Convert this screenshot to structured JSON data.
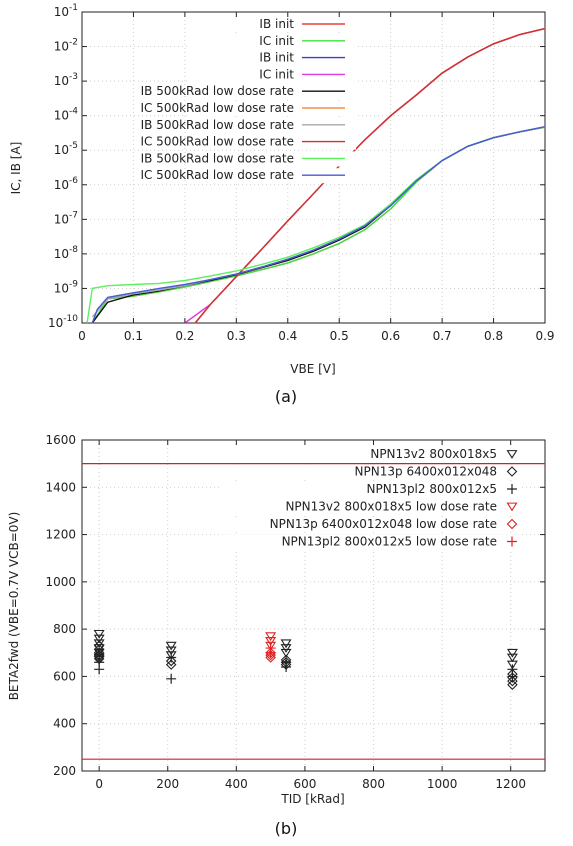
{
  "chart_data": [
    {
      "type": "line",
      "caption": "(a)",
      "xlabel": "VBE [V]",
      "ylabel": "IC, IB [A]",
      "yscale": "log",
      "xlim": [
        0,
        0.9
      ],
      "ylim": [
        1e-10,
        0.1
      ],
      "xticks": [
        "0",
        "0.1",
        "0.2",
        "0.3",
        "0.4",
        "0.5",
        "0.6",
        "0.7",
        "0.8",
        "0.9"
      ],
      "yticks": [
        {
          "base": "10",
          "exp": "-10"
        },
        {
          "base": "10",
          "exp": "-9"
        },
        {
          "base": "10",
          "exp": "-8"
        },
        {
          "base": "10",
          "exp": "-7"
        },
        {
          "base": "10",
          "exp": "-6"
        },
        {
          "base": "10",
          "exp": "-5"
        },
        {
          "base": "10",
          "exp": "-4"
        },
        {
          "base": "10",
          "exp": "-3"
        },
        {
          "base": "10",
          "exp": "-2"
        },
        {
          "base": "10",
          "exp": "-1"
        }
      ],
      "legend_position": "top-right",
      "series": [
        {
          "name": "IB init",
          "color": "#e8413c",
          "x": [
            0.02,
            0.05,
            0.1,
            0.15,
            0.2,
            0.25,
            0.3,
            0.35,
            0.4,
            0.45,
            0.5,
            0.55,
            0.6,
            0.65,
            0.7,
            0.75,
            0.8,
            0.85,
            0.9
          ],
          "y": [
            1e-10,
            5e-10,
            6e-10,
            8e-10,
            1.1e-09,
            1.6e-09,
            2.3e-09,
            3.5e-09,
            5.5e-09,
            1e-08,
            2e-08,
            5e-08,
            2e-07,
            1.2e-06,
            5e-06,
            1.3e-05,
            2.3e-05,
            3.4e-05,
            4.7e-05
          ]
        },
        {
          "name": "IC init",
          "color": "#3fe23f",
          "x": [
            0.02,
            0.05,
            0.1,
            0.15,
            0.2,
            0.25,
            0.3,
            0.35,
            0.4,
            0.45,
            0.5,
            0.55,
            0.6,
            0.65,
            0.7,
            0.75,
            0.8,
            0.85,
            0.9
          ],
          "y": [
            1e-10,
            5e-10,
            6e-10,
            8e-10,
            1.1e-09,
            1.6e-09,
            2.3e-09,
            3.5e-09,
            5.5e-09,
            1e-08,
            2e-08,
            5e-08,
            2e-07,
            1.2e-06,
            5e-06,
            1.3e-05,
            2.3e-05,
            3.4e-05,
            4.7e-05
          ]
        },
        {
          "name": "IB init",
          "color": "#3a3ae0",
          "x": [
            0.22,
            0.25,
            0.3,
            0.35,
            0.4,
            0.45,
            0.5,
            0.55,
            0.6,
            0.65,
            0.7,
            0.75,
            0.8,
            0.85,
            0.9
          ],
          "y": [
            1e-10,
            3.5e-10,
            2.2e-09,
            1.4e-08,
            9e-08,
            5.5e-07,
            3.5e-06,
            2e-05,
            0.0001,
            0.0004,
            0.0017,
            0.005,
            0.012,
            0.022,
            0.033
          ]
        },
        {
          "name": "IC init",
          "color": "#e03ae0",
          "x": [
            0.2,
            0.25,
            0.3,
            0.35,
            0.4,
            0.45,
            0.5,
            0.55,
            0.6,
            0.65,
            0.7,
            0.75,
            0.8,
            0.85,
            0.9
          ],
          "y": [
            1e-10,
            3.5e-10,
            2.2e-09,
            1.4e-08,
            9e-08,
            5.5e-07,
            3.5e-06,
            2e-05,
            0.0001,
            0.0004,
            0.0017,
            0.005,
            0.012,
            0.022,
            0.033
          ]
        },
        {
          "name": "IB 500kRad low dose rate",
          "color": "#111111",
          "x": [
            0.02,
            0.05,
            0.1,
            0.15,
            0.2,
            0.25,
            0.3,
            0.35,
            0.4,
            0.45,
            0.5,
            0.55,
            0.6,
            0.65,
            0.7,
            0.75,
            0.8,
            0.85,
            0.9
          ],
          "y": [
            1e-10,
            4e-10,
            6.5e-10,
            8.5e-10,
            1.2e-09,
            1.7e-09,
            2.5e-09,
            4e-09,
            6.5e-09,
            1.2e-08,
            2.5e-08,
            6e-08,
            2.5e-07,
            1.3e-06,
            5e-06,
            1.3e-05,
            2.3e-05,
            3.4e-05,
            4.7e-05
          ]
        },
        {
          "name": "IC 500kRad low dose rate",
          "color": "#f0904a",
          "x": [
            0.22,
            0.25,
            0.3,
            0.35,
            0.4,
            0.45,
            0.5,
            0.55,
            0.6,
            0.65,
            0.7,
            0.75,
            0.8,
            0.85,
            0.9
          ],
          "y": [
            1e-10,
            3.5e-10,
            2.2e-09,
            1.4e-08,
            9e-08,
            5.5e-07,
            3.5e-06,
            2e-05,
            0.0001,
            0.0004,
            0.0017,
            0.005,
            0.012,
            0.022,
            0.033
          ]
        },
        {
          "name": "IB 500kRad low dose rate",
          "color": "#a8a8a8",
          "x": [
            0.02,
            0.05,
            0.1,
            0.15,
            0.2,
            0.25,
            0.3,
            0.35,
            0.4,
            0.45,
            0.5,
            0.55,
            0.6,
            0.65,
            0.7,
            0.75,
            0.8,
            0.85,
            0.9
          ],
          "y": [
            1.5e-10,
            5e-10,
            7e-10,
            9e-10,
            1.2e-09,
            1.8e-09,
            2.6e-09,
            4.2e-09,
            7e-09,
            1.3e-08,
            2.7e-08,
            6.5e-08,
            2.6e-07,
            1.3e-06,
            5e-06,
            1.3e-05,
            2.3e-05,
            3.4e-05,
            4.7e-05
          ]
        },
        {
          "name": "IC 500kRad low dose rate",
          "color": "#d23030",
          "x": [
            0.22,
            0.25,
            0.3,
            0.35,
            0.4,
            0.45,
            0.5,
            0.55,
            0.6,
            0.65,
            0.7,
            0.75,
            0.8,
            0.85,
            0.9
          ],
          "y": [
            1e-10,
            3.5e-10,
            2.2e-09,
            1.4e-08,
            9e-08,
            5.5e-07,
            3.5e-06,
            2e-05,
            0.0001,
            0.0004,
            0.0017,
            0.005,
            0.012,
            0.022,
            0.033
          ]
        },
        {
          "name": "IB 500kRad low dose rate",
          "color": "#5cf05c",
          "x": [
            0.01,
            0.02,
            0.05,
            0.1,
            0.15,
            0.2,
            0.25,
            0.3,
            0.35,
            0.4,
            0.45,
            0.5,
            0.55,
            0.6,
            0.65,
            0.7,
            0.75,
            0.8,
            0.85,
            0.9
          ],
          "y": [
            1e-10,
            1e-09,
            1.2e-09,
            1.3e-09,
            1.4e-09,
            1.7e-09,
            2.3e-09,
            3.2e-09,
            5e-09,
            8e-09,
            1.5e-08,
            3e-08,
            7e-08,
            2.8e-07,
            1.4e-06,
            5e-06,
            1.3e-05,
            2.3e-05,
            3.4e-05,
            4.8e-05
          ]
        },
        {
          "name": "IC 500kRad low dose rate",
          "color": "#4a5ad8",
          "x": [
            0.02,
            0.03,
            0.05,
            0.1,
            0.15,
            0.2,
            0.25,
            0.3,
            0.35,
            0.4,
            0.45,
            0.5,
            0.55,
            0.6,
            0.65,
            0.7,
            0.75,
            0.8,
            0.85,
            0.9
          ],
          "y": [
            1e-10,
            2.5e-10,
            5.5e-10,
            7.5e-10,
            1e-09,
            1.3e-09,
            1.8e-09,
            2.6e-09,
            4.2e-09,
            7e-09,
            1.3e-08,
            2.7e-08,
            6.5e-08,
            2.5e-07,
            1.3e-06,
            5e-06,
            1.3e-05,
            2.3e-05,
            3.4e-05,
            4.8e-05
          ]
        }
      ]
    },
    {
      "type": "scatter",
      "caption": "(b)",
      "xlabel": "TID [kRad]",
      "ylabel": "BETA2fwd (VBE=0.7V VCB=0V)",
      "xlim": [
        -50,
        1300
      ],
      "ylim": [
        200,
        1600
      ],
      "xticks": [
        "0",
        "200",
        "400",
        "600",
        "800",
        "1000",
        "1200"
      ],
      "yticks": [
        "200",
        "400",
        "600",
        "800",
        "1000",
        "1200",
        "1400",
        "1600"
      ],
      "legend_position": "top-right",
      "hlines": [
        {
          "y": 1500,
          "color": "#d62020"
        },
        {
          "y": 250,
          "color": "#d62020"
        }
      ],
      "series": [
        {
          "name": "NPN13v2 800x018x5",
          "marker": "triangle-down",
          "color": "#222222",
          "points": [
            [
              0,
              780
            ],
            [
              0,
              760
            ],
            [
              0,
              740
            ],
            [
              0,
              720
            ],
            [
              0,
              700
            ],
            [
              0,
              680
            ],
            [
              0,
              670
            ],
            [
              210,
              730
            ],
            [
              210,
              710
            ],
            [
              210,
              690
            ],
            [
              545,
              740
            ],
            [
              545,
              720
            ],
            [
              545,
              700
            ],
            [
              1205,
              700
            ],
            [
              1205,
              680
            ],
            [
              1205,
              650
            ]
          ]
        },
        {
          "name": "NPN13p 6400x012x048",
          "marker": "diamond",
          "color": "#222222",
          "points": [
            [
              0,
              730
            ],
            [
              0,
              715
            ],
            [
              0,
              700
            ],
            [
              0,
              690
            ],
            [
              0,
              675
            ],
            [
              210,
              665
            ],
            [
              210,
              650
            ],
            [
              545,
              670
            ],
            [
              545,
              660
            ],
            [
              545,
              650
            ],
            [
              1205,
              610
            ],
            [
              1205,
              595
            ],
            [
              1205,
              580
            ],
            [
              1205,
              565
            ]
          ]
        },
        {
          "name": "NPN13pl2 800x012x5",
          "marker": "plus",
          "color": "#222222",
          "points": [
            [
              0,
              690
            ],
            [
              0,
              660
            ],
            [
              0,
              630
            ],
            [
              210,
              680
            ],
            [
              210,
              590
            ],
            [
              545,
              660
            ],
            [
              545,
              640
            ],
            [
              1205,
              630
            ],
            [
              1205,
              600
            ]
          ]
        },
        {
          "name": "NPN13v2 800x018x5 low dose rate",
          "marker": "triangle-down",
          "color": "#e02020",
          "points": [
            [
              500,
              770
            ],
            [
              500,
              750
            ],
            [
              500,
              730
            ]
          ]
        },
        {
          "name": "NPN13p 6400x012x048 low dose rate",
          "marker": "diamond",
          "color": "#e02020",
          "points": [
            [
              500,
              700
            ],
            [
              500,
              690
            ],
            [
              500,
              680
            ]
          ]
        },
        {
          "name": "NPN13pl2 800x012x5 low dose rate",
          "marker": "plus",
          "color": "#e02020",
          "points": [
            [
              500,
              720
            ],
            [
              500,
              700
            ]
          ]
        }
      ]
    }
  ]
}
